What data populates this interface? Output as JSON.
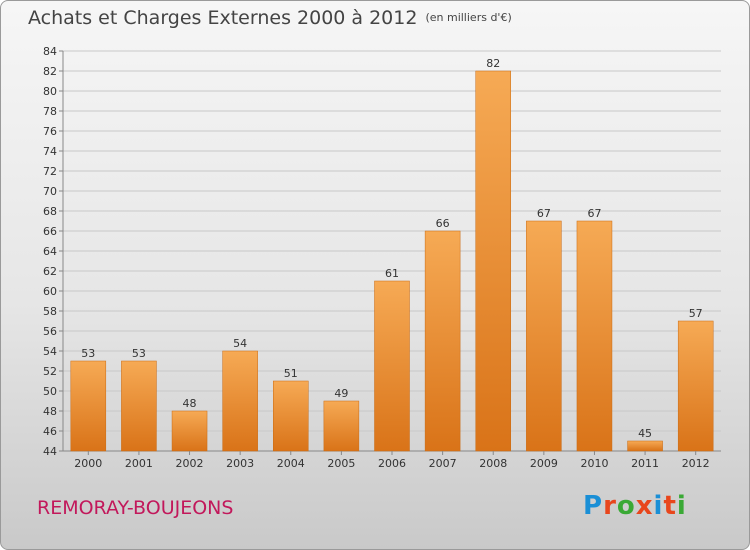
{
  "header": {
    "title": "Achats et Charges Externes 2000 à 2012",
    "unit": "(en milliers d'€)"
  },
  "footer": {
    "commune": "REMORAY-BOUJEONS",
    "brand": "Proxiti",
    "brand_colors": [
      "#1a8fd6",
      "#e8461c",
      "#3aa935",
      "#e8461c",
      "#1a8fd6",
      "#e8461c",
      "#3aa935"
    ]
  },
  "colors": {
    "bar_light": "#f6aa55",
    "bar_dark": "#d97318",
    "grid": "#c8c8c8",
    "axis_text": "#333333",
    "title": "#444444",
    "commune": "#c2185b"
  },
  "chart_data": {
    "type": "bar",
    "title": "Achats et Charges Externes 2000 à 2012",
    "unit": "(en milliers d'€)",
    "categories": [
      "2000",
      "2001",
      "2002",
      "2003",
      "2004",
      "2005",
      "2006",
      "2007",
      "2008",
      "2009",
      "2010",
      "2011",
      "2012"
    ],
    "values": [
      53,
      53,
      48,
      54,
      51,
      49,
      61,
      66,
      82,
      67,
      67,
      45,
      57
    ],
    "ylim": [
      44,
      84
    ],
    "ytick_step": 2,
    "grid": true,
    "data_labels": true
  }
}
